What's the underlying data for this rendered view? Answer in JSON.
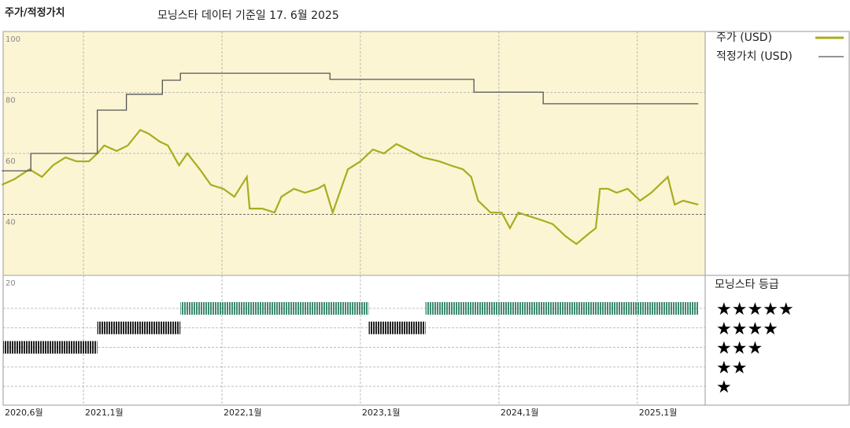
{
  "header": {
    "title": "주가/적정가치",
    "subtitle": "모닝스타 데이터 기준일 17. 6월 2025"
  },
  "chart_data": [
    {
      "type": "line",
      "xlim": [
        2020.42,
        2025.49
      ],
      "xticks": [
        {
          "value": 2020.42,
          "label": "2020,6월"
        },
        {
          "value": 2021,
          "label": "2021,1월"
        },
        {
          "value": 2022,
          "label": "2022,1월"
        },
        {
          "value": 2023,
          "label": "2023,1월"
        },
        {
          "value": 2024,
          "label": "2024,1월"
        },
        {
          "value": 2025,
          "label": "2025,1월"
        }
      ],
      "ylim": [
        20,
        100
      ],
      "yticks": [
        20,
        40,
        60,
        80,
        100
      ],
      "grid": true,
      "legend": "right",
      "series": [
        {
          "name": "주가 (USD)",
          "color": "#a9ac1f",
          "step": false,
          "x": [
            2020.41,
            2020.5,
            2020.61,
            2020.7,
            2020.78,
            2020.87,
            2020.95,
            2021.04,
            2021.1,
            2021.15,
            2021.24,
            2021.32,
            2021.41,
            2021.47,
            2021.55,
            2021.61,
            2021.69,
            2021.75,
            2021.84,
            2021.92,
            2022.01,
            2022.09,
            2022.18,
            2022.2,
            2022.29,
            2022.38,
            2022.43,
            2022.52,
            2022.6,
            2022.69,
            2022.74,
            2022.8,
            2022.86,
            2022.91,
            2023.0,
            2023.09,
            2023.17,
            2023.26,
            2023.34,
            2023.45,
            2023.57,
            2023.65,
            2023.74,
            2023.8,
            2023.85,
            2023.94,
            2024.02,
            2024.08,
            2024.14,
            2024.22,
            2024.31,
            2024.39,
            2024.48,
            2024.56,
            2024.65,
            2024.7,
            2024.73,
            2024.79,
            2024.85,
            2024.93,
            2025.02,
            2025.1,
            2025.22,
            2025.27,
            2025.33,
            2025.44
          ],
          "values": [
            49.7,
            51.5,
            54.8,
            52.3,
            56.1,
            58.7,
            57.4,
            57.4,
            60.0,
            62.6,
            60.8,
            62.6,
            67.7,
            66.5,
            63.9,
            62.6,
            56.1,
            60.0,
            54.8,
            49.7,
            48.4,
            45.8,
            52.3,
            41.9,
            41.9,
            40.6,
            45.8,
            48.4,
            47.1,
            48.4,
            49.7,
            40.6,
            48.4,
            54.8,
            57.4,
            61.3,
            60.0,
            63.1,
            61.3,
            58.7,
            57.4,
            56.1,
            54.8,
            52.3,
            44.5,
            40.6,
            40.6,
            35.5,
            40.6,
            39.4,
            38.1,
            36.8,
            32.9,
            30.3,
            33.7,
            35.5,
            48.4,
            48.4,
            47.1,
            48.4,
            44.5,
            47.1,
            52.3,
            43.2,
            44.5,
            43.2
          ]
        },
        {
          "name": "적정가치 (USD)",
          "color": "#555555",
          "step": true,
          "x": [
            2020.41,
            2020.62,
            2021.1,
            2021.31,
            2021.57,
            2021.7,
            2022.78,
            2023.82,
            2024.32,
            2025.44
          ],
          "values": [
            54.3,
            60.0,
            74.2,
            79.4,
            84.0,
            86.3,
            84.3,
            80.1,
            76.3,
            76.3
          ]
        }
      ]
    },
    {
      "type": "timeline",
      "title": "모닝스타 등급",
      "categories": [
        "★★★★★",
        "★★★★",
        "★★★",
        "★★",
        "★"
      ],
      "colors": {
        "5": "#3f8a6f",
        "other": "#222222"
      },
      "segments": [
        {
          "start": 2020.42,
          "end": 2021.1,
          "stars": 3
        },
        {
          "start": 2021.1,
          "end": 2021.7,
          "stars": 4
        },
        {
          "start": 2021.7,
          "end": 2023.06,
          "stars": 5
        },
        {
          "start": 2023.06,
          "end": 2023.47,
          "stars": 4
        },
        {
          "start": 2023.47,
          "end": 2025.44,
          "stars": 5
        }
      ]
    }
  ]
}
